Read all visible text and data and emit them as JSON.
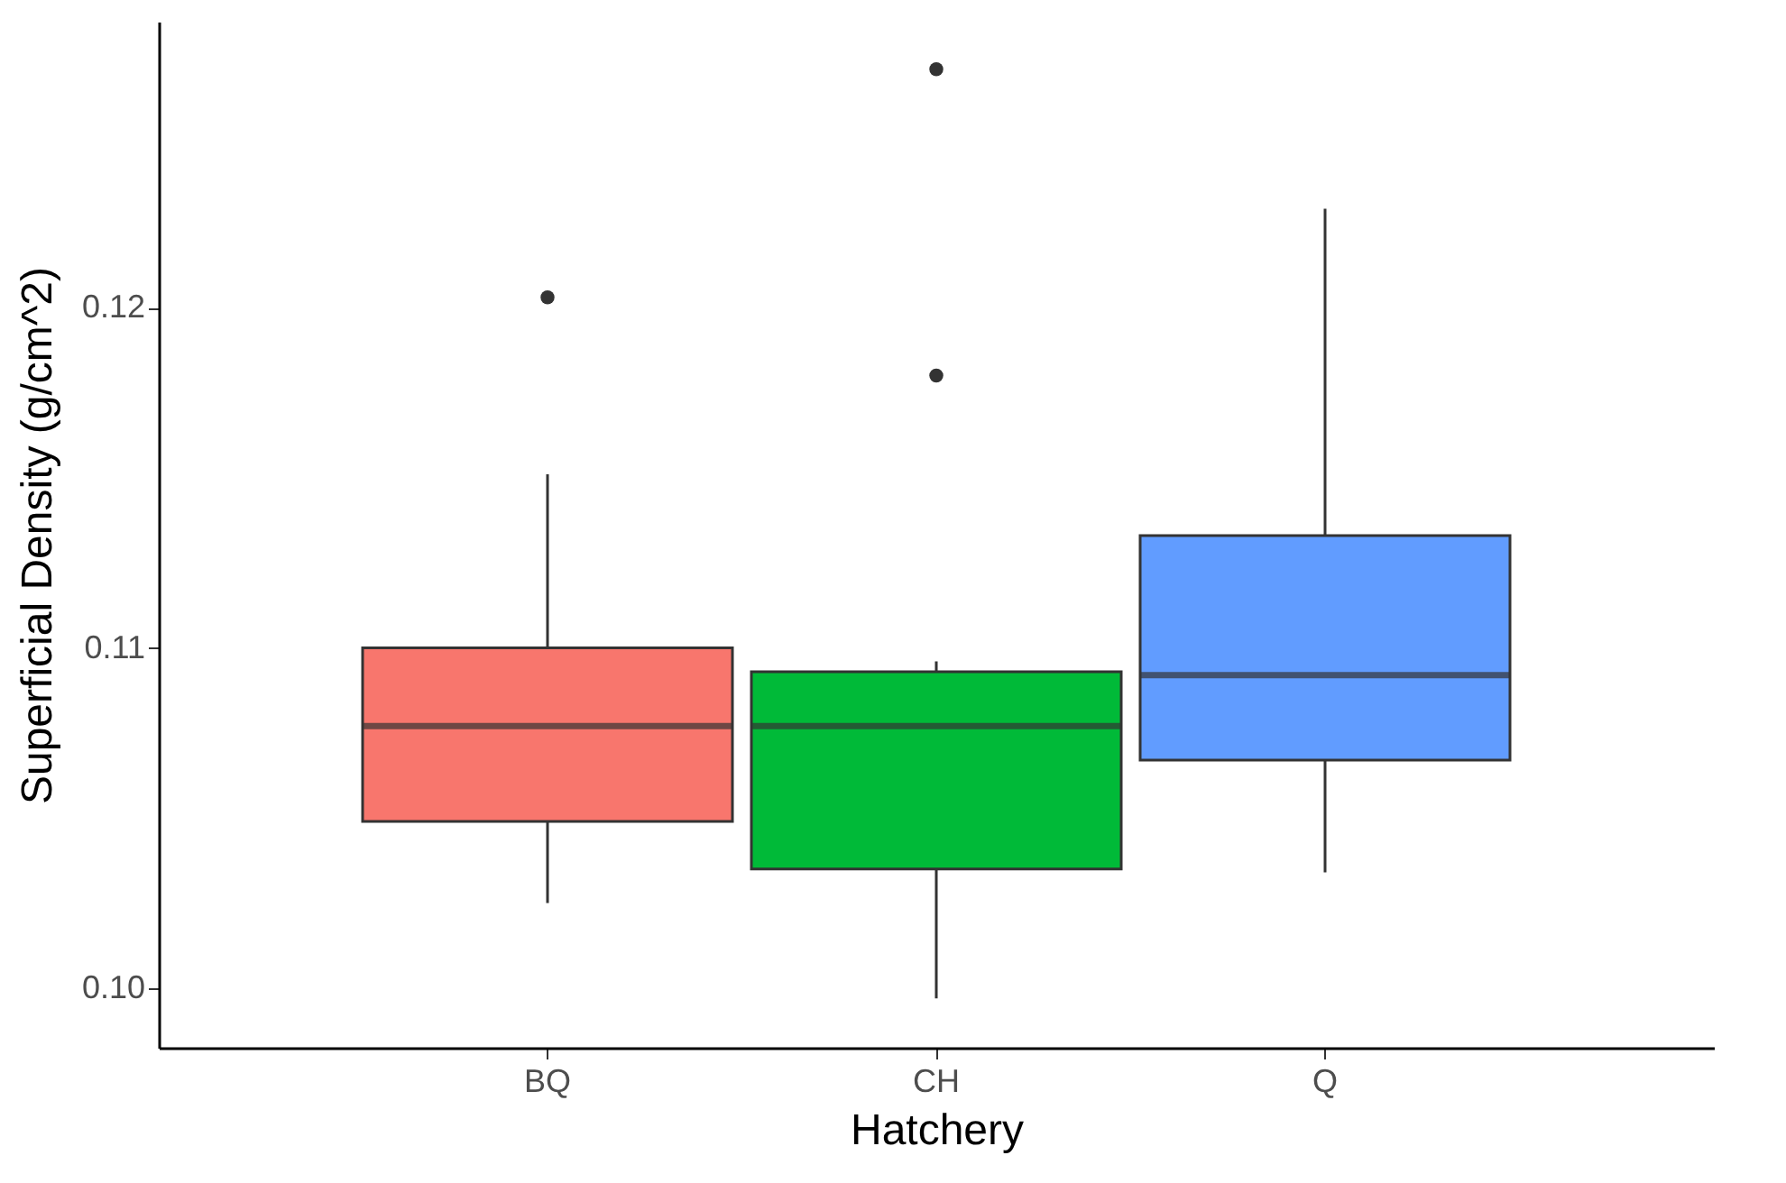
{
  "chart_data": {
    "type": "box",
    "xlabel": "Hatchery",
    "ylabel": "Superficial Density (g/cm^2)",
    "categories": [
      "BQ",
      "CH",
      "Q"
    ],
    "colors": [
      "#f8766d",
      "#00ba38",
      "#619cff"
    ],
    "boxes": [
      {
        "low": 0.1025,
        "q1": 0.1049,
        "median": 0.1077,
        "q3": 0.11,
        "high": 0.1151,
        "outliers": [
          0.1203
        ]
      },
      {
        "low": 0.0997,
        "q1": 0.1035,
        "median": 0.1077,
        "q3": 0.1093,
        "high": 0.1096,
        "outliers": [
          0.127,
          0.118
        ]
      },
      {
        "low": 0.1034,
        "q1": 0.1067,
        "median": 0.1092,
        "q3": 0.1133,
        "high": 0.1229
      }
    ],
    "ylim": [
      0.09825,
      0.1284
    ],
    "yticks": [
      {
        "value": 0.1,
        "label": "0.10"
      },
      0.11,
      0.12
    ],
    "grid": false,
    "legend": false
  }
}
